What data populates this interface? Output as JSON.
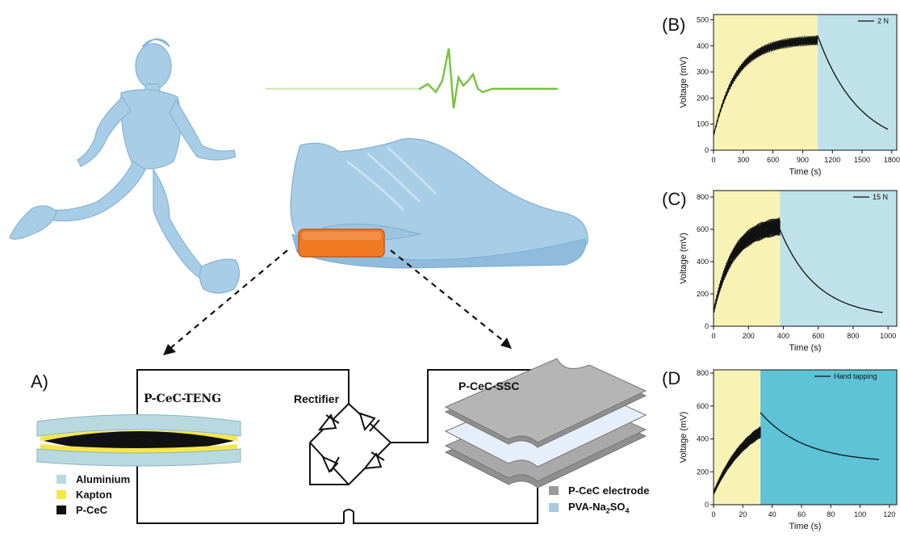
{
  "panels": {
    "A": {
      "letter": "A)"
    },
    "B": {
      "letter": "(B)"
    },
    "C": {
      "letter": "(C)"
    },
    "D": {
      "letter": "(D"
    }
  },
  "device_labels": {
    "teng": "P-CeC-TENG",
    "rectifier": "Rectifier",
    "ssc": "P-CeC-SSC"
  },
  "legend_left": [
    {
      "label": "Aluminium",
      "color": "#b8d9e0"
    },
    {
      "label": "Kapton",
      "color": "#f7e64a"
    },
    {
      "label": "P-CeC",
      "color": "#111111"
    }
  ],
  "legend_right": [
    {
      "label": "P-CeC electrode",
      "color": "#9a9a9a"
    },
    {
      "label": "PVA-Na",
      "sub": "2",
      "label2": "SO",
      "sub2": "4",
      "color": "#a9c8e2"
    }
  ],
  "colors": {
    "figure_blue": "#a8cde6",
    "sensor_orange": "#f07a24",
    "heartbeat_green": "#7cc242",
    "charge_bg": "#f8f3b5",
    "discharge_bg": "#bfe2ea",
    "discharge_bg_D": "#5ec3d6"
  },
  "chart_data": [
    {
      "type": "line",
      "panel": "B",
      "legend": "2 N",
      "xlabel": "Time (s)",
      "ylabel": "Voltage (mV)",
      "xlim": [
        0,
        1850
      ],
      "ylim": [
        0,
        520
      ],
      "xticks": [
        0,
        300,
        600,
        900,
        1200,
        1500,
        1800
      ],
      "yticks": [
        0,
        100,
        200,
        300,
        400,
        500
      ],
      "charge_end": 1050,
      "charge": {
        "v0": 60,
        "vmax": 440,
        "tau": 230,
        "noise": 30
      },
      "discharge": {
        "v0": 440,
        "vend": 80,
        "t_end": 1760,
        "tau": 420
      }
    },
    {
      "type": "line",
      "panel": "C",
      "legend": "15 N",
      "xlabel": "Time (s)",
      "ylabel": "Voltage (mV)",
      "xlim": [
        0,
        1050
      ],
      "ylim": [
        0,
        840
      ],
      "xticks": [
        0,
        200,
        400,
        600,
        800,
        1000
      ],
      "yticks": [
        0,
        200,
        400,
        600,
        800
      ],
      "charge_end": 380,
      "charge": {
        "v0": 100,
        "vmax": 680,
        "tau": 110,
        "noise": 90
      },
      "discharge": {
        "v0": 600,
        "vend": 85,
        "t_end": 970,
        "tau": 210
      }
    },
    {
      "type": "line",
      "panel": "D",
      "legend": "Hand tapping",
      "xlabel": "Time (s)",
      "ylabel": "Voltage (mV)",
      "xlim": [
        0,
        125
      ],
      "ylim": [
        0,
        820
      ],
      "xticks": [
        0,
        20,
        40,
        60,
        80,
        100,
        120
      ],
      "yticks": [
        0,
        200,
        400,
        600,
        800
      ],
      "charge_end": 32,
      "charge": {
        "v0": 80,
        "vmax": 620,
        "tau": 25,
        "noise": 70
      },
      "discharge": {
        "v0": 560,
        "vend": 275,
        "t_end": 113,
        "tau": 30
      }
    }
  ]
}
